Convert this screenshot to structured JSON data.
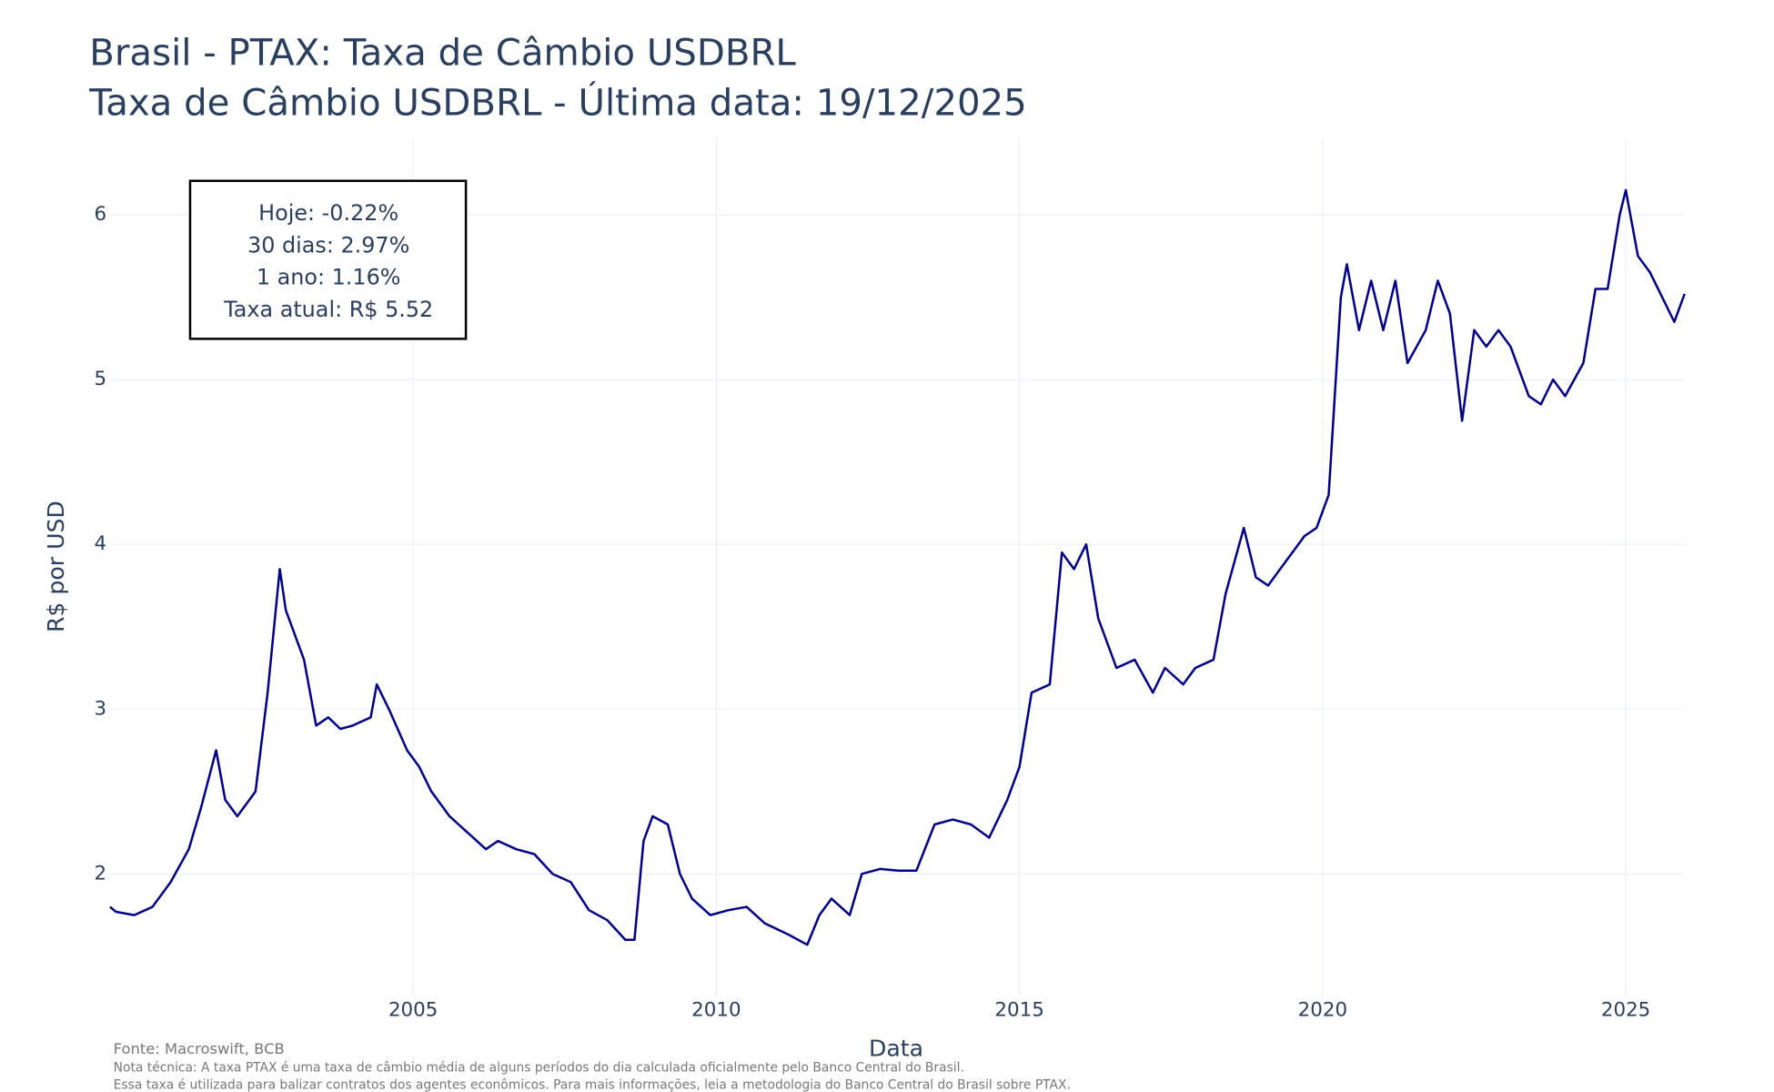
{
  "chart_data": {
    "type": "line",
    "title": "Brasil - PTAX: Taxa de Câmbio USDBRL",
    "subtitle": "Taxa de Câmbio USDBRL - Última data: 19/12/2025",
    "x_label": "Data",
    "y_label": "R$ por USD",
    "annotation": [
      "Hoje: -0.22%",
      "30 dias: 2.97%",
      "1 ano: 1.16%",
      "Taxa atual: R$ 5.52"
    ],
    "source": "Fonte: Macroswift, BCB",
    "notes": [
      "Nota técnica: A taxa PTAX é uma taxa de câmbio média de alguns períodos do dia calculada oficialmente pelo Banco Central do Brasil.",
      "Essa taxa é utilizada para balizar contratos dos agentes econômicos. Para mais informações, leia a metodologia do Banco Central do Brasil sobre PTAX."
    ],
    "grid": true,
    "xlim": [
      2000,
      2025.97
    ],
    "ylim": [
      1.26,
      6.47
    ],
    "xticks": [
      2005,
      2010,
      2015,
      2020,
      2025
    ],
    "yticks": [
      2,
      3,
      4,
      5,
      6
    ],
    "x": [
      2000.0,
      2000.1,
      2000.4,
      2000.7,
      2001.0,
      2001.3,
      2001.5,
      2001.75,
      2001.9,
      2002.1,
      2002.4,
      2002.6,
      2002.8,
      2002.9,
      2003.0,
      2003.2,
      2003.4,
      2003.6,
      2003.8,
      2004.0,
      2004.3,
      2004.4,
      2004.6,
      2004.9,
      2005.1,
      2005.3,
      2005.6,
      2005.9,
      2006.2,
      2006.4,
      2006.7,
      2007.0,
      2007.3,
      2007.6,
      2007.9,
      2008.2,
      2008.5,
      2008.65,
      2008.8,
      2008.95,
      2009.2,
      2009.4,
      2009.6,
      2009.9,
      2010.2,
      2010.5,
      2010.8,
      2011.2,
      2011.5,
      2011.7,
      2011.9,
      2012.2,
      2012.4,
      2012.7,
      2013.0,
      2013.3,
      2013.6,
      2013.9,
      2014.2,
      2014.5,
      2014.8,
      2015.0,
      2015.2,
      2015.5,
      2015.7,
      2015.9,
      2016.1,
      2016.3,
      2016.6,
      2016.9,
      2017.2,
      2017.4,
      2017.7,
      2017.9,
      2018.2,
      2018.4,
      2018.7,
      2018.9,
      2019.1,
      2019.4,
      2019.7,
      2019.9,
      2020.1,
      2020.3,
      2020.4,
      2020.6,
      2020.8,
      2021.0,
      2021.2,
      2021.4,
      2021.7,
      2021.9,
      2022.1,
      2022.3,
      2022.5,
      2022.7,
      2022.9,
      2023.1,
      2023.4,
      2023.6,
      2023.8,
      2024.0,
      2024.3,
      2024.5,
      2024.7,
      2024.9,
      2025.0,
      2025.2,
      2025.4,
      2025.6,
      2025.8,
      2025.97
    ],
    "series": [
      {
        "name": "USDBRL",
        "color": "#00008b",
        "values": [
          1.8,
          1.77,
          1.75,
          1.8,
          1.95,
          2.15,
          2.4,
          2.75,
          2.45,
          2.35,
          2.5,
          3.1,
          3.85,
          3.6,
          3.5,
          3.3,
          2.9,
          2.95,
          2.88,
          2.9,
          2.95,
          3.15,
          3.0,
          2.75,
          2.65,
          2.5,
          2.35,
          2.25,
          2.15,
          2.2,
          2.15,
          2.12,
          2.0,
          1.95,
          1.78,
          1.72,
          1.6,
          1.6,
          2.2,
          2.35,
          2.3,
          2.0,
          1.85,
          1.75,
          1.78,
          1.8,
          1.7,
          1.63,
          1.57,
          1.75,
          1.85,
          1.75,
          2.0,
          2.03,
          2.02,
          2.02,
          2.3,
          2.33,
          2.3,
          2.22,
          2.45,
          2.65,
          3.1,
          3.15,
          3.95,
          3.85,
          4.0,
          3.55,
          3.25,
          3.3,
          3.1,
          3.25,
          3.15,
          3.25,
          3.3,
          3.7,
          4.1,
          3.8,
          3.75,
          3.9,
          4.05,
          4.1,
          4.3,
          5.5,
          5.7,
          5.3,
          5.6,
          5.3,
          5.6,
          5.1,
          5.3,
          5.6,
          5.4,
          4.75,
          5.3,
          5.2,
          5.3,
          5.2,
          4.9,
          4.85,
          5.0,
          4.9,
          5.1,
          5.55,
          5.55,
          6.0,
          6.15,
          5.75,
          5.65,
          5.5,
          5.35,
          5.52
        ]
      }
    ]
  }
}
